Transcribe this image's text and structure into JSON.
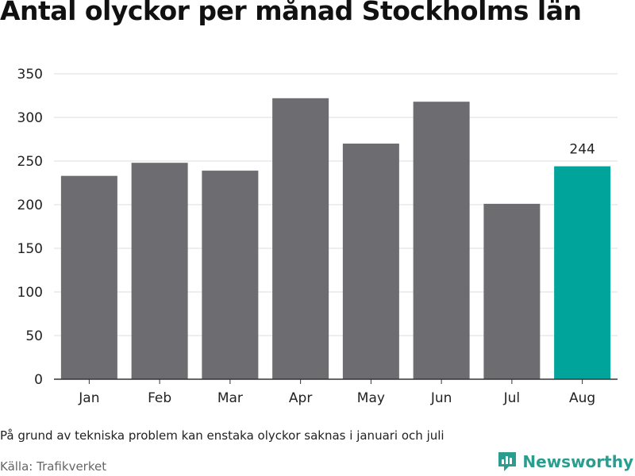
{
  "chart_data": {
    "type": "bar",
    "title": "Antal olyckor per månad Stockholms län",
    "categories": [
      "Jan",
      "Feb",
      "Mar",
      "Apr",
      "May",
      "Jun",
      "Jul",
      "Aug"
    ],
    "values": [
      233,
      248,
      239,
      322,
      270,
      318,
      201,
      244
    ],
    "y_ticks": [
      0,
      50,
      100,
      150,
      200,
      250,
      300,
      350
    ],
    "ylim": [
      0,
      350
    ],
    "grid": true,
    "highlight_index": 7,
    "highlight_label": "244",
    "colors": {
      "bar": "#6d6c71",
      "highlight": "#00a49a",
      "grid": "#dddddd",
      "axis": "#333333"
    }
  },
  "footnote": "På grund av tekniska problem kan enstaka olyckor saknas i januari och juli",
  "source": "Källa: Trafikverket",
  "brand": {
    "name": "Newsworthy",
    "icon": "bar-chart-logo-icon",
    "color": "#2a9d8f"
  }
}
